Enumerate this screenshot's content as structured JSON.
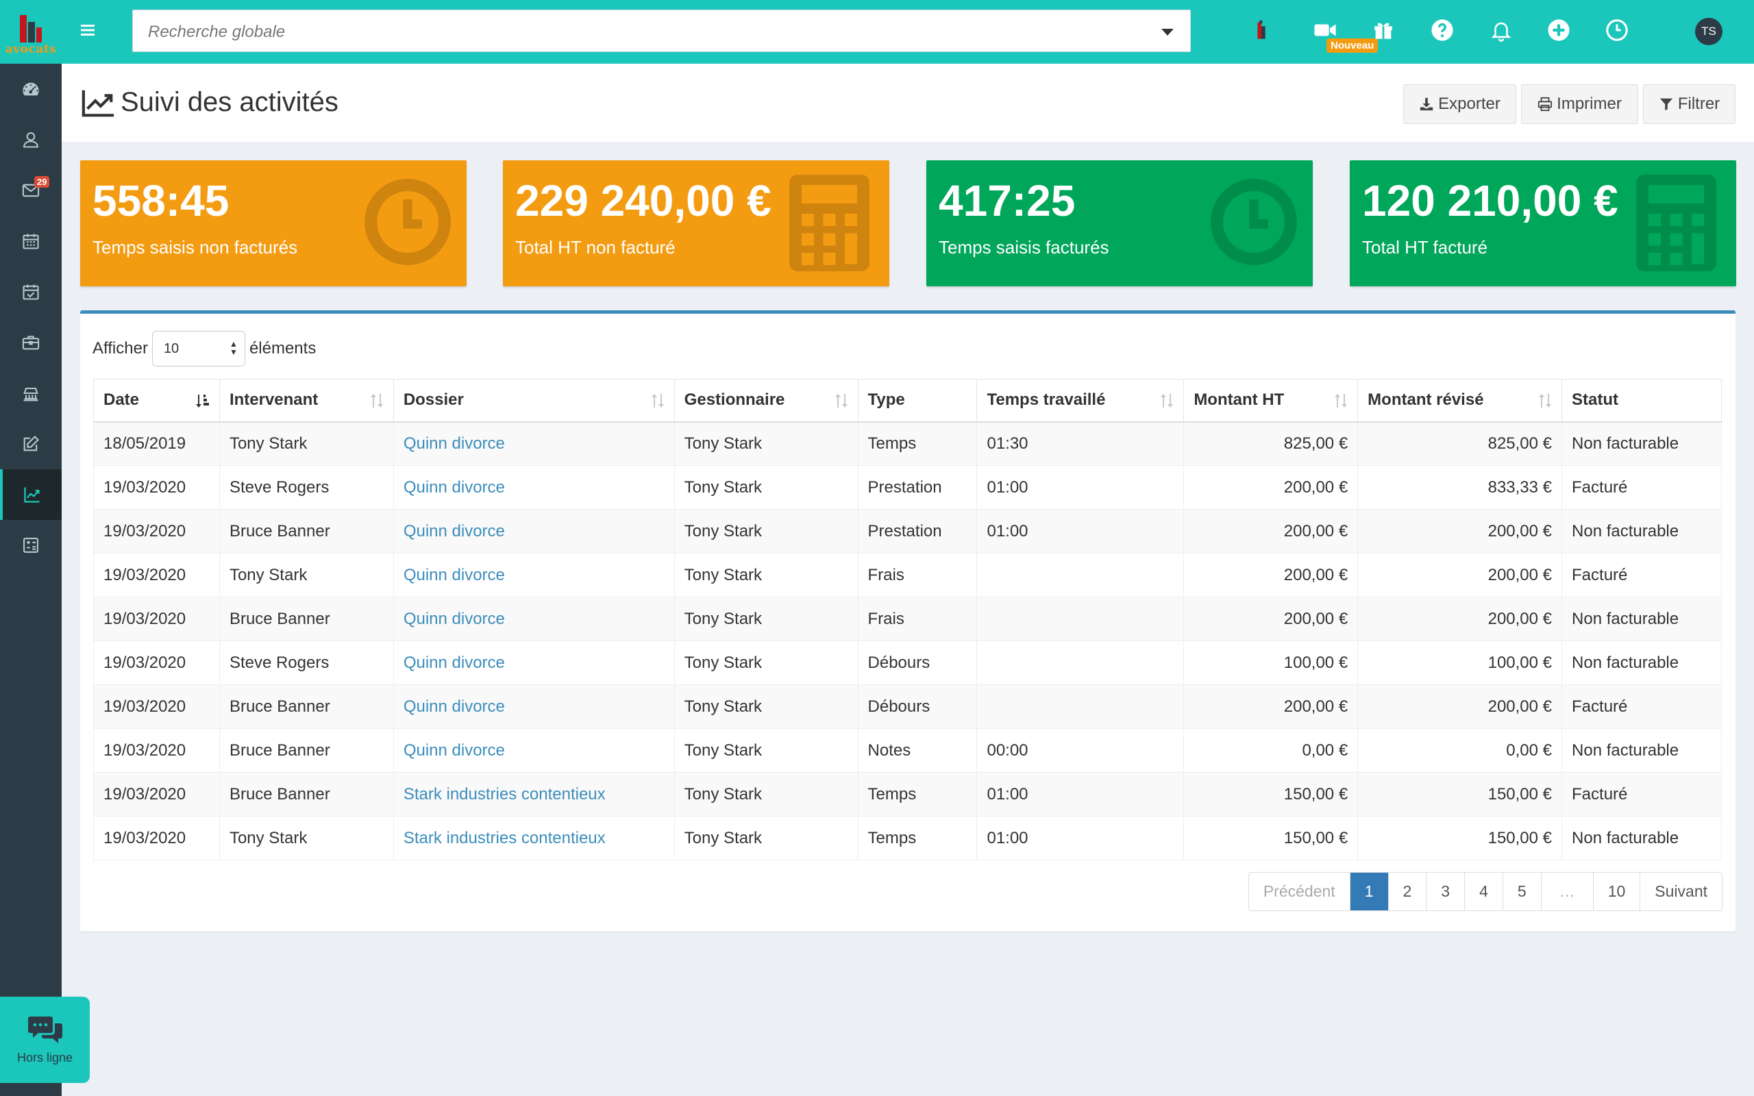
{
  "logo": {
    "text": "avocats"
  },
  "sidebar": {
    "items": [
      {
        "name": "dashboard",
        "icon": "dashboard-icon"
      },
      {
        "name": "contacts",
        "icon": "contacts-icon"
      },
      {
        "name": "messages",
        "icon": "envelope-icon",
        "badge": "29"
      },
      {
        "name": "calendar",
        "icon": "calendar-icon"
      },
      {
        "name": "tasks",
        "icon": "calendar-check-icon"
      },
      {
        "name": "dossiers",
        "icon": "briefcase-icon"
      },
      {
        "name": "courts",
        "icon": "courthouse-icon"
      },
      {
        "name": "edit",
        "icon": "edit-icon"
      },
      {
        "name": "activities",
        "icon": "chart-line-icon",
        "active": true
      },
      {
        "name": "billing",
        "icon": "calculator-icon"
      }
    ]
  },
  "topbar": {
    "search_placeholder": "Recherche globale",
    "video_badge": "Nouveau",
    "avatar_initials": "TS"
  },
  "header": {
    "title": "Suivi des activités",
    "export_label": "Exporter",
    "print_label": "Imprimer",
    "filter_label": "Filtrer"
  },
  "cards": [
    {
      "value": "558:45",
      "label": "Temps saisis non facturés",
      "color": "#f39c12",
      "icon": "clock-icon"
    },
    {
      "value": "229 240,00 €",
      "label": "Total HT non facturé",
      "color": "#f39c12",
      "icon": "calculator-icon"
    },
    {
      "value": "417:25",
      "label": "Temps saisis facturés",
      "color": "#00a65a",
      "icon": "clock-icon"
    },
    {
      "value": "120 210,00 €",
      "label": "Total HT facturé",
      "color": "#00a65a",
      "icon": "calculator-icon"
    }
  ],
  "table": {
    "length_prefix": "Afficher",
    "length_value": "10",
    "length_suffix": "éléments",
    "columns": [
      "Date",
      "Intervenant",
      "Dossier",
      "Gestionnaire",
      "Type",
      "Temps travaillé",
      "Montant HT",
      "Montant révisé",
      "Statut"
    ],
    "rows": [
      [
        "18/05/2019",
        "Tony Stark",
        "Quinn divorce",
        "Tony Stark",
        "Temps",
        "01:30",
        "825,00 €",
        "825,00 €",
        "Non facturable"
      ],
      [
        "19/03/2020",
        "Steve Rogers",
        "Quinn divorce",
        "Tony Stark",
        "Prestation",
        "01:00",
        "200,00 €",
        "833,33 €",
        "Facturé"
      ],
      [
        "19/03/2020",
        "Bruce Banner",
        "Quinn divorce",
        "Tony Stark",
        "Prestation",
        "01:00",
        "200,00 €",
        "200,00 €",
        "Non facturable"
      ],
      [
        "19/03/2020",
        "Tony Stark",
        "Quinn divorce",
        "Tony Stark",
        "Frais",
        "",
        "200,00 €",
        "200,00 €",
        "Facturé"
      ],
      [
        "19/03/2020",
        "Bruce Banner",
        "Quinn divorce",
        "Tony Stark",
        "Frais",
        "",
        "200,00 €",
        "200,00 €",
        "Non facturable"
      ],
      [
        "19/03/2020",
        "Steve Rogers",
        "Quinn divorce",
        "Tony Stark",
        "Débours",
        "",
        "100,00 €",
        "100,00 €",
        "Non facturable"
      ],
      [
        "19/03/2020",
        "Bruce Banner",
        "Quinn divorce",
        "Tony Stark",
        "Débours",
        "",
        "200,00 €",
        "200,00 €",
        "Facturé"
      ],
      [
        "19/03/2020",
        "Bruce Banner",
        "Quinn divorce",
        "Tony Stark",
        "Notes",
        "00:00",
        "0,00 €",
        "0,00 €",
        "Non facturable"
      ],
      [
        "19/03/2020",
        "Bruce Banner",
        "Stark industries contentieux",
        "Tony Stark",
        "Temps",
        "01:00",
        "150,00 €",
        "150,00 €",
        "Facturé"
      ],
      [
        "19/03/2020",
        "Tony Stark",
        "Stark industries contentieux",
        "Tony Stark",
        "Temps",
        "01:00",
        "150,00 €",
        "150,00 €",
        "Non facturable"
      ]
    ]
  },
  "pagination": {
    "prev_label": "Précédent",
    "pages": [
      "1",
      "2",
      "3",
      "4",
      "5",
      "…",
      "10"
    ],
    "current": "1",
    "next_label": "Suivant"
  },
  "chat": {
    "status": "Hors ligne"
  }
}
